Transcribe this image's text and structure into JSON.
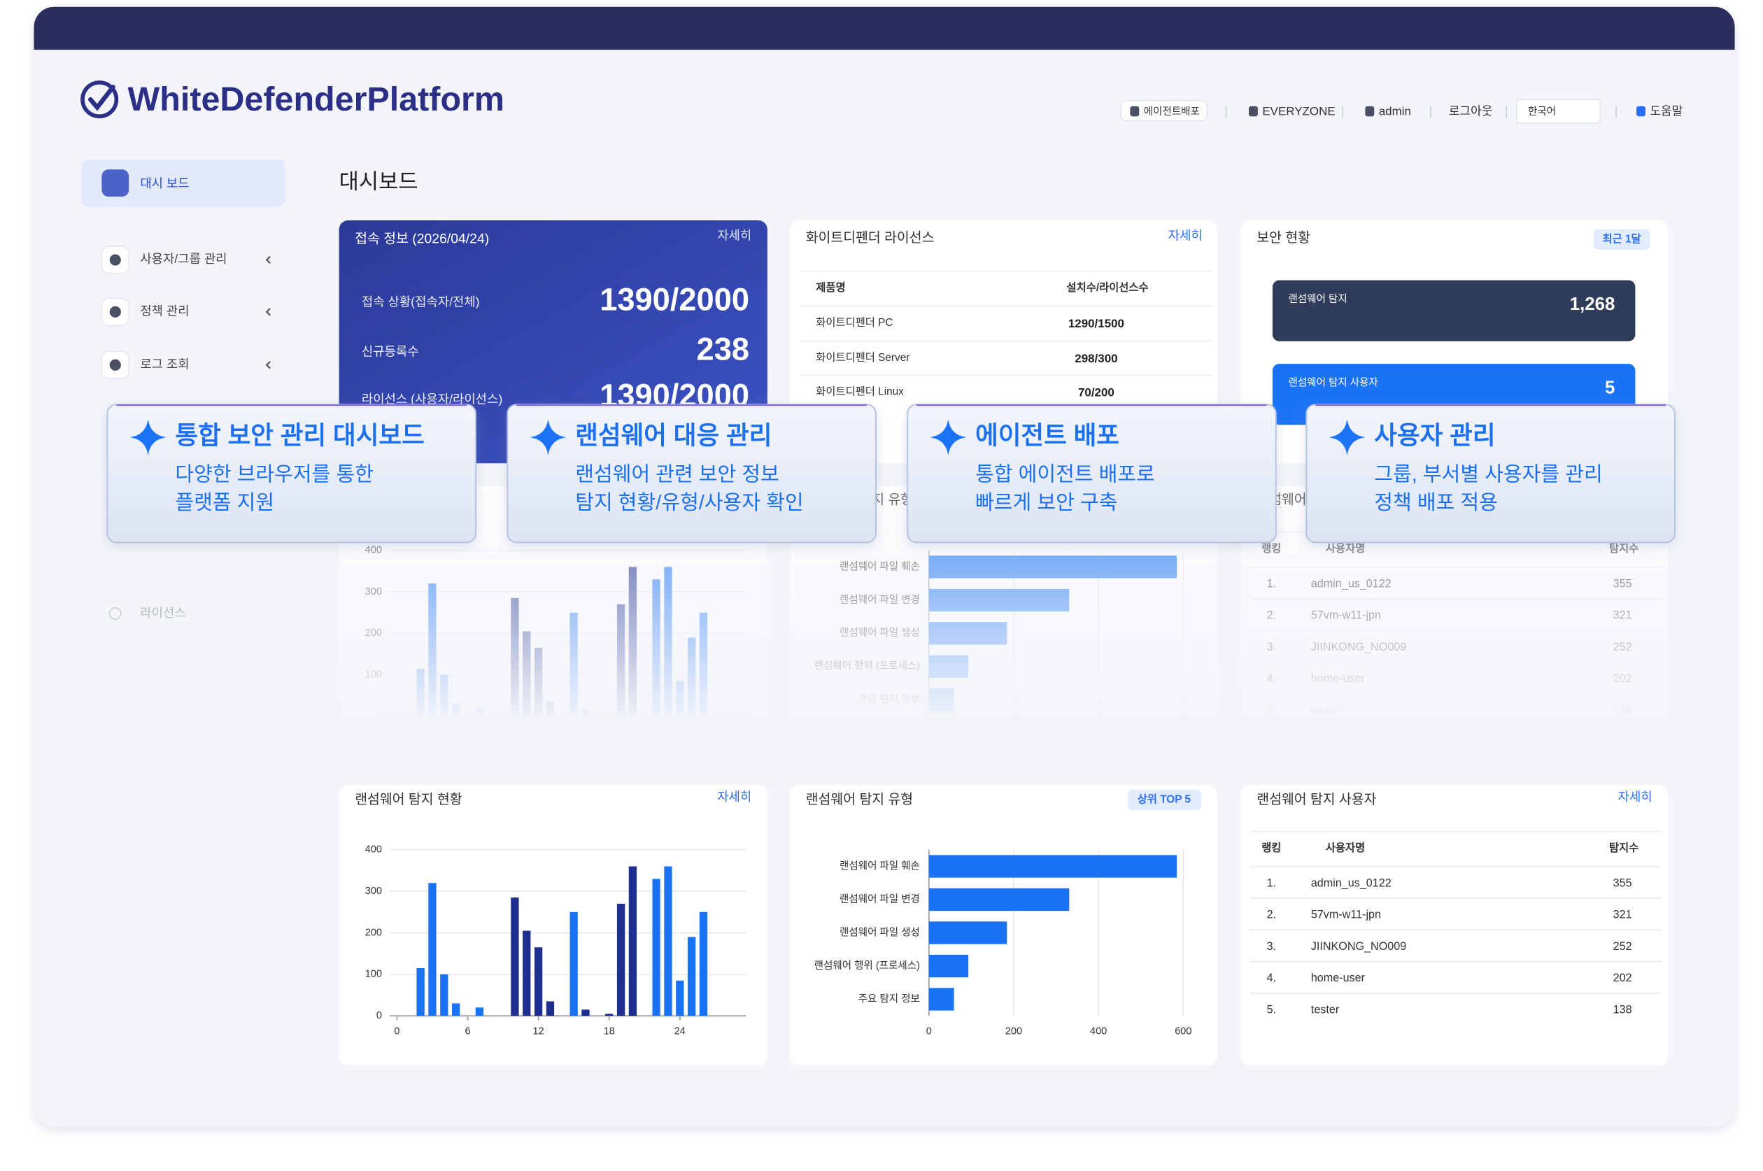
{
  "header": {
    "logo": "WhiteDefenderPlatform",
    "nav": [
      "에이전트배포",
      "EVERYZONE",
      "admin",
      "로그아웃",
      "한국어",
      "도움말"
    ]
  },
  "sidebar": [
    "대시 보드",
    "사용자/그룹 관리",
    "정책 관리",
    "로그 조회",
    "라이선스"
  ],
  "page_title": "대시보드",
  "access_card": {
    "title": "접속 정보 (2026/04/24)",
    "link": "자세히",
    "rows": [
      {
        "label": "접속 상황(접속자/전체)",
        "value": "1390/2000"
      },
      {
        "label": "신규등록수",
        "value": "238"
      },
      {
        "label": "라이선스 (사용자/라이선스)",
        "value": "1390/2000"
      }
    ]
  },
  "license_card": {
    "title": "화이트디펜더 라이선스",
    "link": "자세히",
    "headers": [
      "제품명",
      "설치수/라이선스수"
    ],
    "rows": [
      [
        "화이트디펜더 PC",
        "1290/1500"
      ],
      [
        "화이트디펜더 Server",
        "298/300"
      ],
      [
        "화이트디펜더 Linux",
        "70/200"
      ]
    ]
  },
  "security_card": {
    "title": "보안 현황",
    "badge": "최근 1달",
    "items": [
      {
        "label": "랜섬웨어 탐지",
        "value": "1,268"
      },
      {
        "label": "랜섬웨어 탐지 사용자",
        "value": "5"
      }
    ]
  },
  "detection_chart": {
    "type": "bar",
    "title": "랜섬웨어 탐지 현황",
    "link": "자세히",
    "x": [
      2,
      3,
      4,
      5,
      7,
      10,
      11,
      12,
      13,
      15,
      16,
      18,
      19,
      20,
      22,
      23,
      24,
      25,
      26
    ],
    "values": [
      115,
      320,
      100,
      30,
      20,
      285,
      205,
      165,
      35,
      250,
      15,
      5,
      270,
      360,
      330,
      360,
      85,
      190,
      250
    ],
    "colors": [
      "#1a73f5",
      "#1a73f5",
      "#1a73f5",
      "#1a73f5",
      "#1a73f5",
      "#1e2f8f",
      "#1e2f8f",
      "#1e2f8f",
      "#1e2f8f",
      "#1a73f5",
      "#1e2f8f",
      "#1e2f8f",
      "#1e2f8f",
      "#1e2f8f",
      "#1a73f5",
      "#1a73f5",
      "#1a73f5",
      "#1a73f5",
      "#1a73f5"
    ],
    "xlim": [
      -0.6,
      29.6
    ],
    "xticks": [
      0,
      6,
      12,
      18,
      24
    ],
    "ylim": [
      0,
      400
    ],
    "yticks": [
      0,
      100,
      200,
      300,
      400
    ],
    "grid": true
  },
  "type_chart": {
    "type": "hbar",
    "title": "랜섬웨어 탐지 유형",
    "badge": "상위 TOP 5",
    "categories": [
      "랜섬웨어 파일 훼손",
      "랜섬웨어 파일 변경",
      "랜섬웨어 파일 생성",
      "랜섬웨어 행위 (프로세스)",
      "주요 탐지 정보"
    ],
    "values": [
      585,
      331,
      184,
      93,
      59
    ],
    "color": "#1a73f5",
    "xlim": [
      0,
      600
    ],
    "xticks": [
      0,
      200,
      400,
      600
    ],
    "grid": true
  },
  "users_card": {
    "title": "랜섬웨어 탐지 사용자",
    "link": "자세히",
    "headers": [
      "랭킹",
      "사용자명",
      "탐지수"
    ],
    "rows": [
      [
        "1.",
        "admin_us_0122",
        "355"
      ],
      [
        "2.",
        "57vm-w11-jpn",
        "321"
      ],
      [
        "3.",
        "JIINKONG_NO009",
        "252"
      ],
      [
        "4.",
        "home-user",
        "202"
      ],
      [
        "5.",
        "tester",
        "138"
      ]
    ]
  },
  "callouts": [
    {
      "title": "통합 보안 관리 대시보드",
      "lines": [
        "다양한 브라우저를 통한",
        "플랫폼 지원"
      ]
    },
    {
      "title": "랜섬웨어 대응 관리",
      "lines": [
        "랜섬웨어 관련 보안 정보",
        "탐지 현황/유형/사용자 확인"
      ]
    },
    {
      "title": "에이전트 배포",
      "lines": [
        "통합 에이전트 배포로",
        "빠르게 보안 구축"
      ]
    },
    {
      "title": "사용자 관리",
      "lines": [
        "그룹, 부서별 사용자를 관리",
        "정책 배포 적용"
      ]
    }
  ]
}
